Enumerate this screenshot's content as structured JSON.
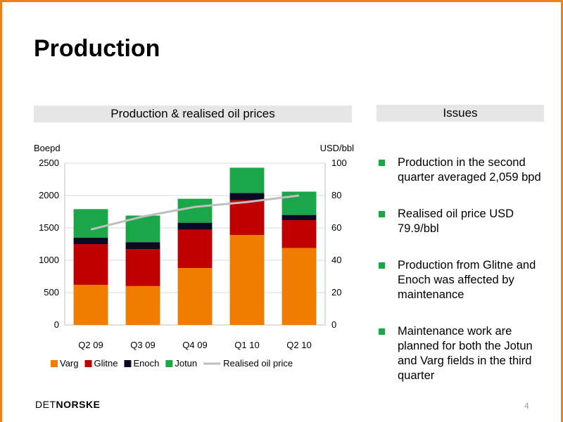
{
  "slide": {
    "title": "Production",
    "chart_header": "Production & realised oil prices",
    "issues_header": "Issues",
    "issues": [
      "Production in the second quarter averaged 2,059 bpd",
      "Realised oil price USD 79.9/bbl",
      "Production from Glitne and Enoch was affected by maintenance",
      "Maintenance work are planned for both the Jotun and Varg fields in the third quarter"
    ],
    "bullet_color": "#1BA64A",
    "accent_color": "#E8821E",
    "logo_thin": "DET",
    "logo_bold": "NORSKE",
    "page_number": "4"
  },
  "chart_data": {
    "type": "bar",
    "stacked": true,
    "categories": [
      "Q2 09",
      "Q3 09",
      "Q4 09",
      "Q1 10",
      "Q2 10"
    ],
    "series": [
      {
        "name": "Varg",
        "color": "#F07D00",
        "values": [
          620,
          600,
          880,
          1390,
          1190
        ]
      },
      {
        "name": "Glitne",
        "color": "#C00000",
        "values": [
          630,
          570,
          590,
          540,
          430
        ]
      },
      {
        "name": "Enoch",
        "color": "#0A0A23",
        "values": [
          100,
          110,
          110,
          110,
          80
        ]
      },
      {
        "name": "Jotun",
        "color": "#1BA64A",
        "values": [
          440,
          410,
          370,
          390,
          360
        ]
      }
    ],
    "line_series": {
      "name": "Realised oil price",
      "color": "#BFBFBF",
      "axis": "right",
      "values": [
        59,
        67,
        73,
        76,
        80
      ]
    },
    "ylabel": "Boepd",
    "ylabel_right": "USD/bbl",
    "ylim": [
      0,
      2500
    ],
    "ylim_right": [
      0,
      100
    ],
    "yticks": [
      0,
      500,
      1000,
      1500,
      2000,
      2500
    ],
    "yticks_right": [
      0,
      20,
      40,
      60,
      80,
      100
    ],
    "grid": true,
    "legend": "bottom"
  }
}
